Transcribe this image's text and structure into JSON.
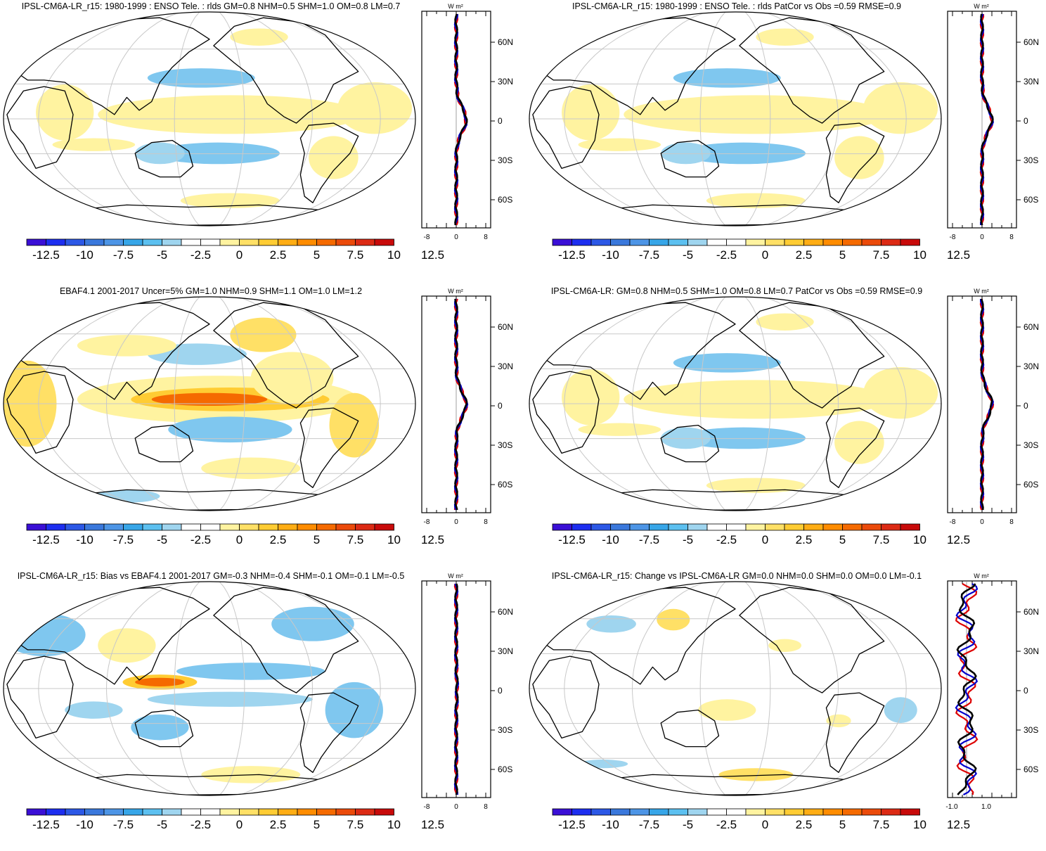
{
  "colorbar": {
    "colors": [
      "#3a0fd6",
      "#1d2ef0",
      "#2c58e6",
      "#3a78dc",
      "#4d95e6",
      "#37a6e8",
      "#5cc0f0",
      "#9fd5ef",
      "#ffffff",
      "#ffffff",
      "#fff3a0",
      "#ffe066",
      "#ffcc33",
      "#ffad14",
      "#ff8c00",
      "#f56a00",
      "#eb4a0a",
      "#dc2a14",
      "#c80a0a"
    ],
    "tick_labels": [
      "-12.5",
      "-10",
      "-7.5",
      "-5",
      "-2.5",
      "0",
      "2.5",
      "5",
      "7.5",
      "10",
      "12.5"
    ]
  },
  "units": "W m²",
  "lat_labels": [
    "60N",
    "30N",
    "0",
    "30S",
    "60S"
  ],
  "panels": [
    {
      "id": "p1",
      "title": "IPSL-CM6A-LR_r15: 1980-1999 : ENSO Tele. : rlds GM=0.8 NHM=0.5 SHM=1.0 OM=0.8 LM=0.7",
      "xticks": [
        "-8",
        "0",
        "8"
      ],
      "field": "model"
    },
    {
      "id": "p2",
      "title": "IPSL-CM6A-LR_r15: 1980-1999 : ENSO Tele. : rlds PatCor vs Obs =0.59 RMSE=0.9",
      "xticks": [
        "-8",
        "0",
        "8"
      ],
      "field": "model"
    },
    {
      "id": "p3",
      "title": "EBAF4.1 2001-2017 Uncer=5% GM=1.0 NHM=0.9 SHM=1.1 OM=1.0 LM=1.2",
      "xticks": [
        "-8",
        "0",
        "8"
      ],
      "field": "obs"
    },
    {
      "id": "p4",
      "title": "IPSL-CM6A-LR: GM=0.8 NHM=0.5 SHM=1.0 OM=0.8 LM=0.7 PatCor vs Obs =0.59 RMSE=0.9",
      "xticks": [
        "-8",
        "0",
        "8"
      ],
      "field": "model"
    },
    {
      "id": "p5",
      "title": "IPSL-CM6A-LR_r15: Bias vs EBAF4.1 2001-2017 GM=-0.3 NHM=-0.4 SHM=-0.1 OM=-0.1 LM=-0.5",
      "xticks": [
        "-8",
        "0",
        "8"
      ],
      "field": "bias"
    },
    {
      "id": "p6",
      "title": "IPSL-CM6A-LR_r15: Change vs IPSL-CM6A-LR GM=0.0 NHM=0.0 SHM=0.0 OM=0.0 LM=-0.1",
      "xticks": [
        "-1.0",
        "1.0"
      ],
      "field": "change"
    }
  ]
}
